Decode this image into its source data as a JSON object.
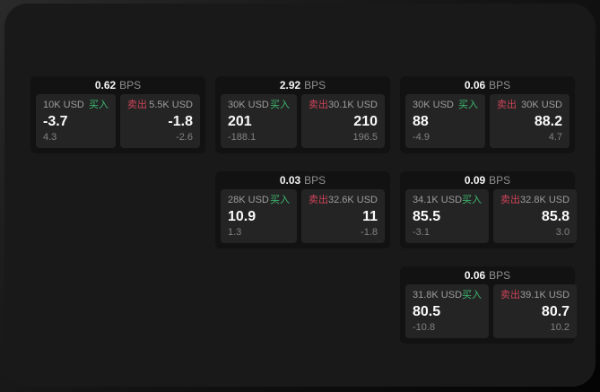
{
  "labels": {
    "buy": "买入",
    "sell": "卖出",
    "bps_unit": "BPS"
  },
  "colors": {
    "buy_green": "#3dba70",
    "sell_red": "#cc4458",
    "window_bg": "#191919",
    "card_bg": "#121212",
    "panel_bg": "#242424"
  },
  "cards": [
    {
      "bps": "0.62",
      "grid": {
        "row": 1,
        "col": 1
      },
      "buy": {
        "amount": "10K USD",
        "value": "-3.7",
        "sub": "4.3"
      },
      "sell": {
        "amount": "5.5K USD",
        "value": "-1.8",
        "sub": "-2.6"
      }
    },
    {
      "bps": "2.92",
      "grid": {
        "row": 1,
        "col": 2
      },
      "buy": {
        "amount": "30K USD",
        "value": "201",
        "sub": "-188.1"
      },
      "sell": {
        "amount": "30.1K USD",
        "value": "210",
        "sub": "196.5"
      }
    },
    {
      "bps": "0.06",
      "grid": {
        "row": 1,
        "col": 3
      },
      "buy": {
        "amount": "30K USD",
        "value": "88",
        "sub": "-4.9"
      },
      "sell": {
        "amount": "30K USD",
        "value": "88.2",
        "sub": "4.7"
      }
    },
    {
      "bps": "0.03",
      "grid": {
        "row": 2,
        "col": 2
      },
      "buy": {
        "amount": "28K USD",
        "value": "10.9",
        "sub": "1.3"
      },
      "sell": {
        "amount": "32.6K USD",
        "value": "11",
        "sub": "-1.8"
      }
    },
    {
      "bps": "0.09",
      "grid": {
        "row": 2,
        "col": 3
      },
      "buy": {
        "amount": "34.1K USD",
        "value": "85.5",
        "sub": "-3.1"
      },
      "sell": {
        "amount": "32.8K USD",
        "value": "85.8",
        "sub": "3.0"
      }
    },
    {
      "bps": "0.06",
      "grid": {
        "row": 3,
        "col": 3
      },
      "buy": {
        "amount": "31.8K USD",
        "value": "80.5",
        "sub": "-10.8"
      },
      "sell": {
        "amount": "39.1K USD",
        "value": "80.7",
        "sub": "10.2"
      }
    }
  ]
}
